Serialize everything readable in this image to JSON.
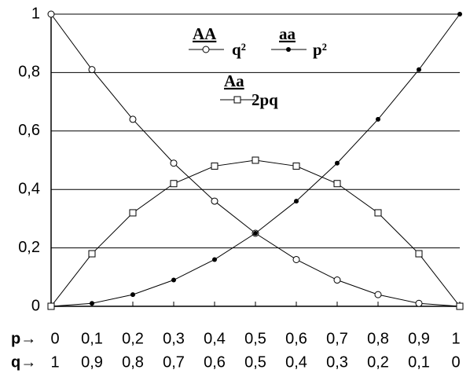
{
  "chart_data": {
    "type": "line",
    "x_row_label": "p→",
    "q_row_label": "q→",
    "x": [
      0,
      0.1,
      0.2,
      0.3,
      0.4,
      0.5,
      0.6,
      0.7,
      0.8,
      0.9,
      1
    ],
    "xlim": [
      0,
      1
    ],
    "xticks": [
      0,
      {
        "value": 0.1,
        "label": "0,1"
      },
      {
        "value": 0.2,
        "label": "0,2"
      },
      {
        "value": 0.3,
        "label": "0,3"
      },
      {
        "value": 0.4,
        "label": "0,4"
      },
      {
        "value": 0.5,
        "label": "0,5"
      },
      {
        "value": 0.6,
        "label": "0,6"
      },
      {
        "value": 0.7,
        "label": "0,7"
      },
      {
        "value": 0.8,
        "label": "0,8"
      },
      {
        "value": 0.9,
        "label": "0,9"
      },
      1
    ],
    "q_labels": [
      "1",
      "0,9",
      "0,8",
      "0,7",
      "0,6",
      "0,5",
      "0,4",
      "0,3",
      "0,2",
      "0,1",
      "0"
    ],
    "ylim": [
      0,
      1
    ],
    "yticks": [
      0,
      {
        "value": 0.2,
        "label": "0,2"
      },
      {
        "value": 0.4,
        "label": "0,4"
      },
      {
        "value": 0.6,
        "label": "0,6"
      },
      {
        "value": 0.8,
        "label": "0,8"
      },
      1
    ],
    "grid": true,
    "series": [
      {
        "name": "AA",
        "formula": "q²",
        "marker": "circle",
        "color": "#000000",
        "values": [
          1,
          0.81,
          0.64,
          0.49,
          0.36,
          0.25,
          0.16,
          0.09,
          0.04,
          0.01,
          0
        ]
      },
      {
        "name": "aa",
        "formula": "p²",
        "marker": "dot",
        "color": "#000000",
        "values": [
          0,
          0.01,
          0.04,
          0.09,
          0.16,
          0.25,
          0.36,
          0.49,
          0.64,
          0.81,
          1
        ]
      },
      {
        "name": "Aa",
        "formula": "2pq",
        "marker": "square",
        "color": "#000000",
        "values": [
          0,
          0.18,
          0.32,
          0.42,
          0.48,
          0.5,
          0.48,
          0.42,
          0.32,
          0.18,
          0
        ]
      }
    ]
  }
}
